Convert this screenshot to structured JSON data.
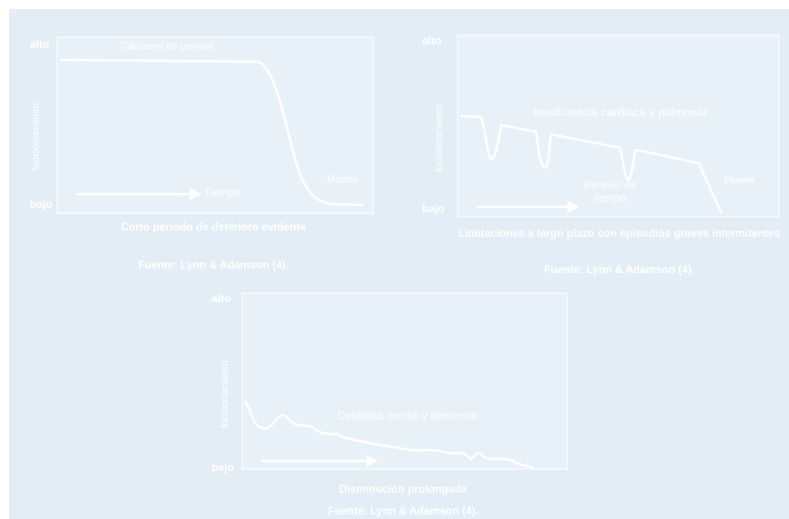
{
  "panels": [
    {
      "high": "alto",
      "low": "bajo",
      "ylabel": "funcionamiento",
      "curve_label": "Cánceres en general",
      "time": "Tiempo",
      "death": "Muerte",
      "caption": "Corto periodo de deterioro evidente",
      "source": "Fuente: Lynn & Adamson (4)."
    },
    {
      "high": "alto",
      "low": "bajo",
      "ylabel": "funcionamiento",
      "curve_label": "Insuficiencia cardiaca y pulmonar",
      "time": "Periodo de tiempo",
      "death": "Muerte",
      "caption": "Limitaciones a largo plazo con episodios graves intermitentes",
      "source": "Fuente: Lynn & Adamson (4)."
    },
    {
      "high": "alto",
      "low": "bajo",
      "ylabel": "funcionamiento",
      "curve_label": "Debilidad mental y demencia",
      "caption": "Disminución prolongada",
      "source": "Fuente: Lynn & Adamson (4)."
    }
  ],
  "colors": {
    "background": "#e3edf6",
    "line": "#ffffff"
  }
}
